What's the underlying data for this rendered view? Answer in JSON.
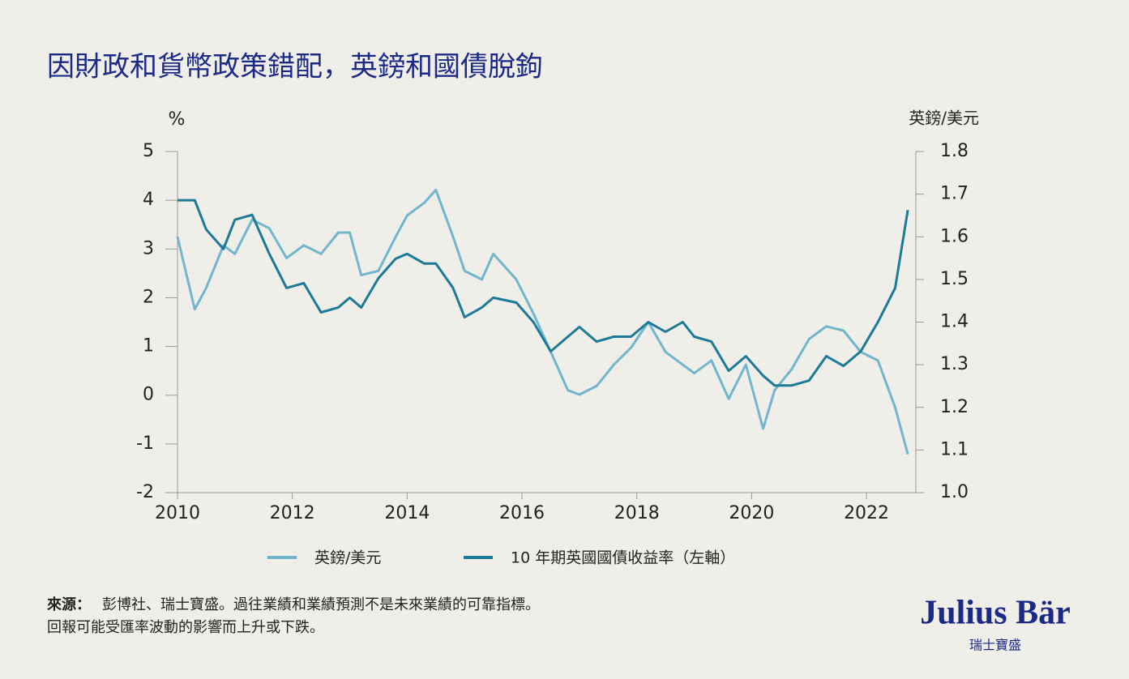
{
  "chart_data": {
    "type": "line",
    "title": "因財政和貨幣政策錯配，英鎊和國債脫鉤",
    "y_label": "%",
    "y2_label": "英鎊/美元",
    "x": [
      2010.0,
      2010.3,
      2010.5,
      2010.8,
      2011.0,
      2011.3,
      2011.6,
      2011.9,
      2012.2,
      2012.5,
      2012.8,
      2013.0,
      2013.2,
      2013.5,
      2013.8,
      2014.0,
      2014.3,
      2014.5,
      2014.8,
      2015.0,
      2015.3,
      2015.5,
      2015.9,
      2016.2,
      2016.5,
      2016.8,
      2017.0,
      2017.3,
      2017.6,
      2017.9,
      2018.2,
      2018.5,
      2018.8,
      2019.0,
      2019.3,
      2019.6,
      2019.9,
      2020.2,
      2020.4,
      2020.7,
      2021.0,
      2021.3,
      2021.6,
      2021.9,
      2022.2,
      2022.5,
      2022.72
    ],
    "series": [
      {
        "name": "英鎊/美元",
        "color": "#72b6cd",
        "axis": "y2",
        "values": [
          1.6,
          1.43,
          1.48,
          1.58,
          1.56,
          1.64,
          1.62,
          1.55,
          1.58,
          1.56,
          1.61,
          1.61,
          1.51,
          1.52,
          1.6,
          1.65,
          1.68,
          1.71,
          1.6,
          1.52,
          1.5,
          1.56,
          1.5,
          1.42,
          1.33,
          1.24,
          1.23,
          1.25,
          1.3,
          1.34,
          1.4,
          1.33,
          1.3,
          1.28,
          1.31,
          1.22,
          1.3,
          1.15,
          1.24,
          1.29,
          1.36,
          1.39,
          1.38,
          1.33,
          1.31,
          1.2,
          1.09
        ]
      },
      {
        "name": "10 年期英國國債收益率（左軸）",
        "color": "#1d7a97",
        "values": [
          4.0,
          4.0,
          3.4,
          3.0,
          3.6,
          3.7,
          2.9,
          2.2,
          2.3,
          1.7,
          1.8,
          2.0,
          1.8,
          2.4,
          2.8,
          2.9,
          2.7,
          2.7,
          2.2,
          1.6,
          1.8,
          2.0,
          1.9,
          1.5,
          0.9,
          1.2,
          1.4,
          1.1,
          1.2,
          1.2,
          1.5,
          1.3,
          1.5,
          1.2,
          1.1,
          0.5,
          0.8,
          0.4,
          0.2,
          0.2,
          0.3,
          0.8,
          0.6,
          0.9,
          1.5,
          2.2,
          3.8
        ]
      }
    ],
    "xlim": [
      2010,
      2022.86
    ],
    "xticks": [
      2010,
      2012,
      2014,
      2016,
      2018,
      2020,
      2022
    ],
    "ylim": [
      -2,
      5
    ],
    "yticks": [
      5,
      4,
      3,
      2,
      1,
      0,
      -1,
      -2
    ],
    "y2lim": [
      1.0,
      1.8
    ],
    "y2ticks": [
      1.8,
      1.7,
      1.6,
      1.5,
      1.4,
      1.3,
      1.2,
      1.1,
      {
        "value": 1,
        "label": "1.0"
      }
    ]
  },
  "footer": {
    "source_label": "來源：",
    "source_text": "彭博社、瑞士寶盛。過往業績和業績預測不是未來業績的可靠指標。",
    "note": "回報可能受匯率波動的影響而上升或下跌。",
    "brand": "Julius Bär",
    "brand_sub": "瑞士寶盛"
  }
}
